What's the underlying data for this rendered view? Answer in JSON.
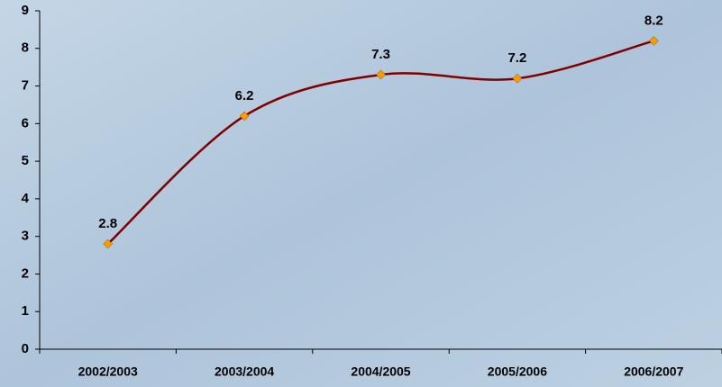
{
  "chart_data": {
    "type": "line",
    "categories": [
      "2002/2003",
      "2003/2004",
      "2004/2005",
      "2005/2006",
      "2006/2007"
    ],
    "series": [
      {
        "values": [
          2.8,
          6.2,
          7.3,
          7.2,
          8.2
        ],
        "color": "#800000",
        "marker_color": "#ff9900"
      }
    ],
    "ylim": [
      0,
      9
    ],
    "yticks": [
      0,
      1,
      2,
      3,
      4,
      5,
      6,
      7,
      8,
      9
    ],
    "smooth": true,
    "data_labels": true
  }
}
